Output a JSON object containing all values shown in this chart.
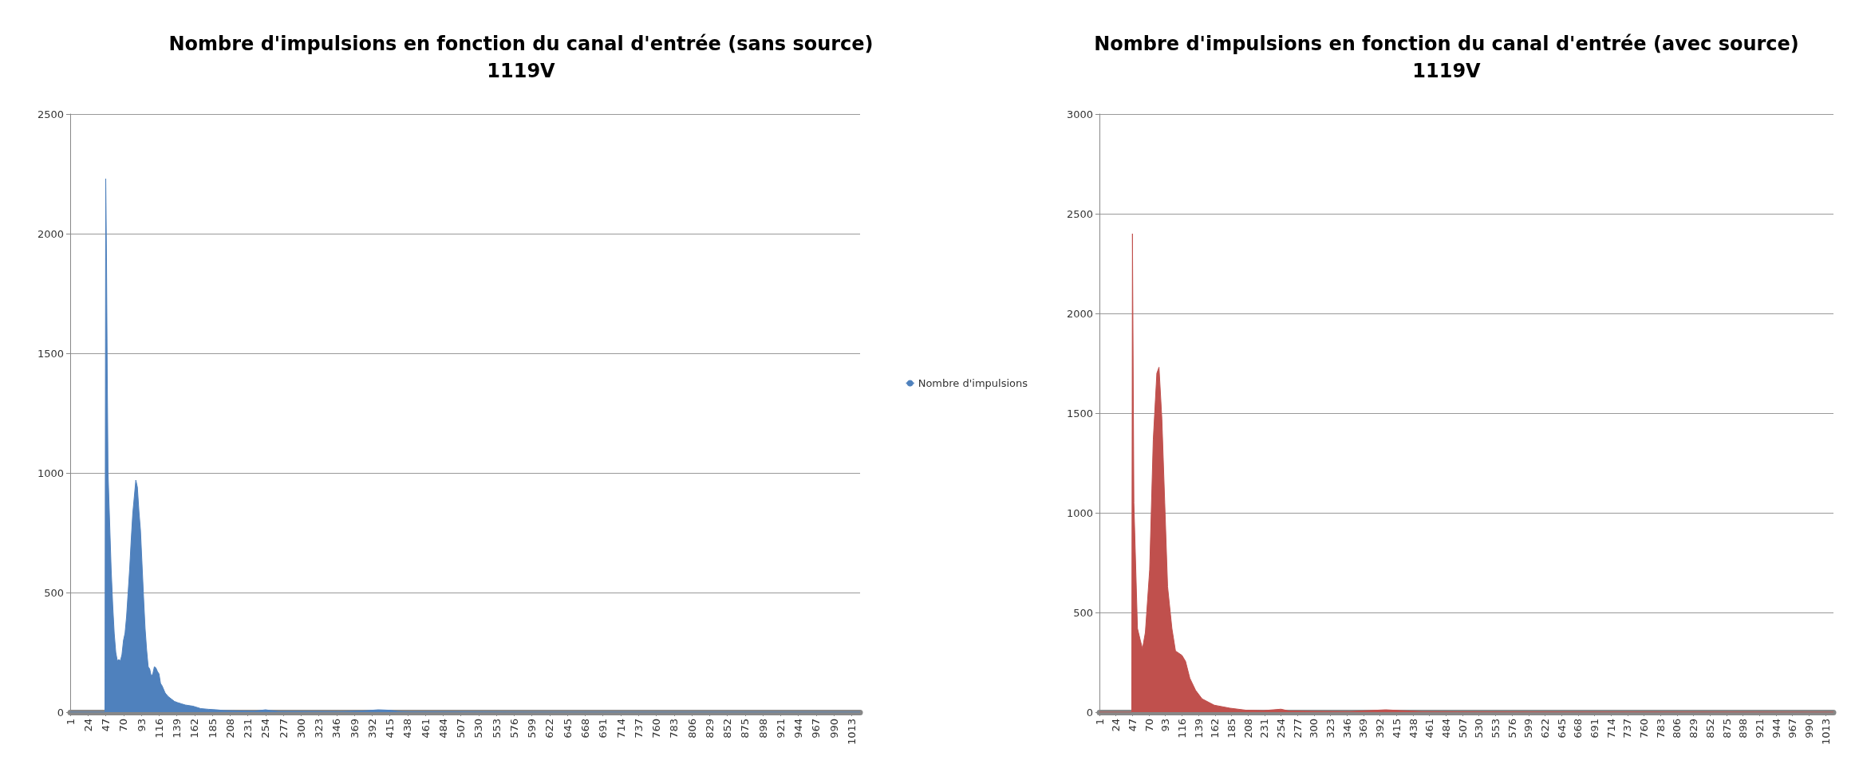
{
  "chart_data": [
    {
      "type": "area",
      "title": "Nombre d'impulsions en fonction du canal d'entrée (sans source)\n1119V",
      "xlim": [
        1,
        1024
      ],
      "xticks": [
        1,
        24,
        47,
        70,
        93,
        116,
        139,
        162,
        185,
        208,
        231,
        254,
        277,
        300,
        323,
        346,
        369,
        392,
        415,
        438,
        461,
        484,
        507,
        530,
        553,
        576,
        599,
        622,
        645,
        668,
        691,
        714,
        737,
        760,
        783,
        806,
        829,
        852,
        875,
        898,
        921,
        944,
        967,
        990,
        1013
      ],
      "ylim": [
        0,
        2500
      ],
      "yticks": [
        0,
        500,
        1000,
        1500,
        2000,
        2500
      ],
      "grid": "y",
      "legend": "right",
      "x": [
        1,
        46,
        47,
        48,
        49,
        50,
        52,
        54,
        56,
        58,
        60,
        62,
        64,
        66,
        68,
        70,
        72,
        74,
        76,
        78,
        80,
        82,
        84,
        86,
        88,
        90,
        92,
        94,
        96,
        98,
        100,
        102,
        104,
        106,
        108,
        110,
        112,
        114,
        116,
        118,
        120,
        124,
        128,
        132,
        136,
        140,
        145,
        150,
        160,
        170,
        180,
        190,
        200,
        220,
        240,
        254,
        260,
        270,
        300,
        350,
        380,
        400,
        415,
        425,
        440,
        500,
        600,
        1024
      ],
      "series": [
        {
          "name": "Nombre d'impulsions",
          "color": "#4f81bd",
          "values": [
            0,
            0,
            2230,
            1900,
            1400,
            1000,
            800,
            600,
            450,
            330,
            250,
            215,
            220,
            215,
            240,
            300,
            330,
            400,
            500,
            600,
            720,
            830,
            900,
            970,
            940,
            840,
            760,
            620,
            480,
            350,
            260,
            190,
            180,
            150,
            160,
            190,
            185,
            170,
            160,
            120,
            110,
            80,
            65,
            55,
            45,
            40,
            35,
            30,
            25,
            15,
            12,
            10,
            7,
            5,
            4,
            10,
            7,
            3,
            3,
            2,
            5,
            10,
            8,
            3,
            1,
            1,
            0,
            0
          ]
        }
      ]
    },
    {
      "type": "area",
      "title": "Nombre d'impulsions en fonction du canal d'entrée (avec source)\n1119V",
      "xlim": [
        1,
        1024
      ],
      "xticks": [
        1,
        24,
        47,
        70,
        93,
        116,
        139,
        162,
        185,
        208,
        231,
        254,
        277,
        300,
        323,
        346,
        369,
        392,
        415,
        438,
        461,
        484,
        507,
        530,
        553,
        576,
        599,
        622,
        645,
        668,
        691,
        714,
        737,
        760,
        783,
        806,
        829,
        852,
        875,
        898,
        921,
        944,
        967,
        990,
        1013
      ],
      "ylim": [
        0,
        3000
      ],
      "yticks": [
        0,
        500,
        1000,
        1500,
        2000,
        2500,
        3000
      ],
      "grid": "y",
      "x": [
        1,
        46,
        47,
        49,
        54,
        58,
        61,
        65,
        71,
        76,
        81,
        84,
        88,
        92,
        96,
        102,
        107,
        116,
        121,
        127,
        135,
        144,
        161,
        183,
        205,
        230,
        254,
        265,
        300,
        350,
        400,
        420,
        450,
        500,
        600,
        1024
      ],
      "series": [
        {
          "color": "#c0504d",
          "values": [
            0,
            0,
            2400,
            1050,
            420,
            360,
            318,
            400,
            715,
            1365,
            1700,
            1730,
            1470,
            1050,
            630,
            420,
            307,
            285,
            255,
            170,
            110,
            67,
            35,
            20,
            10,
            8,
            15,
            6,
            4,
            3,
            12,
            8,
            3,
            2,
            1,
            0
          ]
        }
      ]
    }
  ]
}
